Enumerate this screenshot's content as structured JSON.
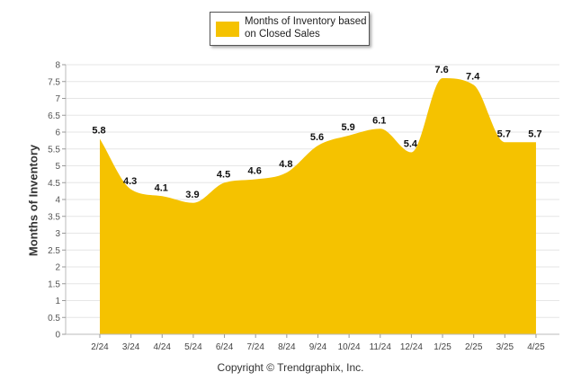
{
  "chart_data": {
    "type": "area",
    "categories": [
      "2/24",
      "3/24",
      "4/24",
      "5/24",
      "6/24",
      "7/24",
      "8/24",
      "9/24",
      "10/24",
      "11/24",
      "12/24",
      "1/25",
      "2/25",
      "3/25",
      "4/25"
    ],
    "series": [
      {
        "name": "Months of Inventory based on Closed Sales",
        "values": [
          5.8,
          4.3,
          4.1,
          3.9,
          4.5,
          4.6,
          4.8,
          5.6,
          5.9,
          6.1,
          5.4,
          7.6,
          7.4,
          5.7,
          5.7
        ]
      }
    ],
    "ylabel": "Months of Inventory",
    "xlabel": "",
    "ylim": [
      0,
      8
    ],
    "yticks": [
      "0",
      "0.5",
      "1",
      "1.5",
      "2",
      "2.5",
      "3",
      "3.5",
      "4",
      "4.5",
      "5",
      "5.5",
      "6",
      "6.5",
      "7",
      "7.5",
      "8"
    ],
    "data_labels": [
      "5.8",
      "4.3",
      "4.1",
      "3.9",
      "4.5",
      "4.6",
      "4.8",
      "5.6",
      "5.9",
      "6.1",
      "5.4",
      "7.6",
      "7.4",
      "5.7",
      "5.7"
    ],
    "grid": true,
    "legend_position": "top-center",
    "color": "#F5C200"
  },
  "legend": {
    "label": "Months of Inventory based on Closed Sales"
  },
  "footer": {
    "copyright": "Copyright © Trendgraphix, Inc."
  }
}
